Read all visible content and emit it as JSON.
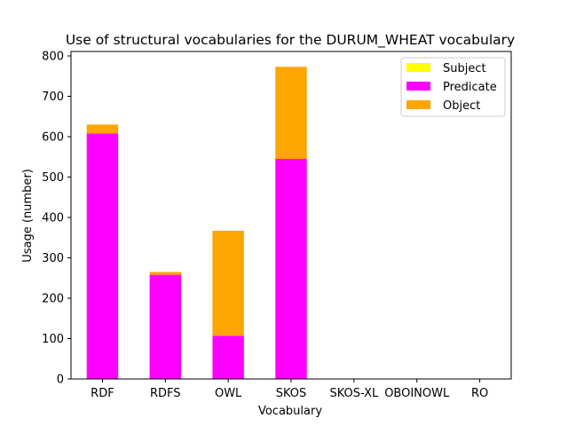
{
  "chart_data": {
    "type": "bar",
    "stacked": true,
    "title": "Use of structural vocabularies for the DURUM_WHEAT vocabulary",
    "xlabel": "Vocabulary",
    "ylabel": "Usage (number)",
    "categories": [
      "RDF",
      "RDFS",
      "OWL",
      "SKOS",
      "SKOS-XL",
      "OBOINOWL",
      "RO"
    ],
    "ylim": [
      0,
      800
    ],
    "yticks": [
      0,
      100,
      200,
      300,
      400,
      500,
      600,
      700,
      800
    ],
    "series": [
      {
        "name": "Subject",
        "color": "#ffff00",
        "values": [
          0,
          0,
          0,
          0,
          0,
          0,
          0
        ]
      },
      {
        "name": "Predicate",
        "color": "#ff00ff",
        "values": [
          608,
          258,
          107,
          545,
          0,
          0,
          0
        ]
      },
      {
        "name": "Object",
        "color": "#ffa500",
        "values": [
          22,
          7,
          260,
          228,
          0,
          0,
          0
        ]
      }
    ],
    "legend_position": "top-right",
    "grid": false
  }
}
